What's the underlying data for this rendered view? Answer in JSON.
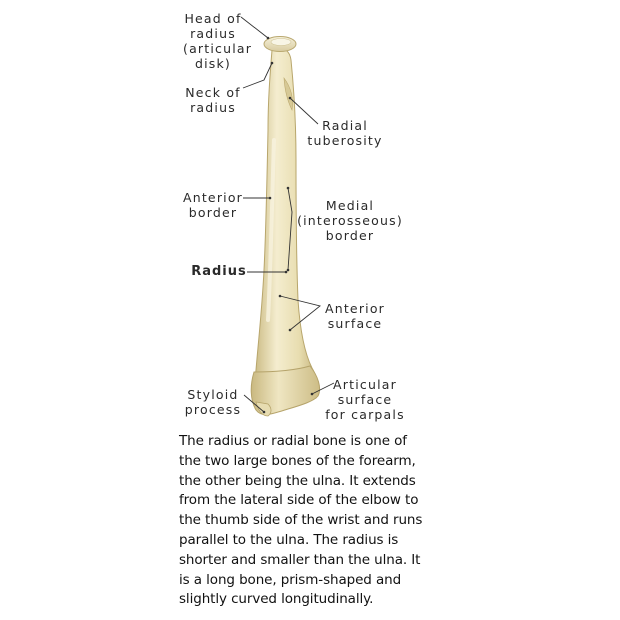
{
  "labels": {
    "head": "Head of\nradius\n(articular\ndisk)",
    "neck": "Neck of\nradius",
    "tuberosity": "Radial\ntuberosity",
    "anterior_border": "Anterior\nborder",
    "medial_border": "Medial\n(interosseous)\nborder",
    "radius": "Radius",
    "anterior_surface": "Anterior\nsurface",
    "articular_surface": "Articular\nsurface\nfor carpals",
    "styloid": "Styloid\nprocess"
  },
  "description_lines": [
    "The radius or radial bone is one of",
    "the two large bones of the forearm,",
    "the other being the ulna. It extends",
    "from the lateral side of the elbow to",
    "the thumb side of the wrist and runs",
    "parallel to the ulna. The radius is",
    "shorter and smaller than the ulna. It",
    "is a long bone, prism-shaped and",
    "slightly curved longitudinally."
  ],
  "colors": {
    "bone_light": "#f3eccc",
    "bone_mid": "#e2d6a4",
    "bone_shadow": "#c8b77e",
    "leader": "#333333"
  }
}
